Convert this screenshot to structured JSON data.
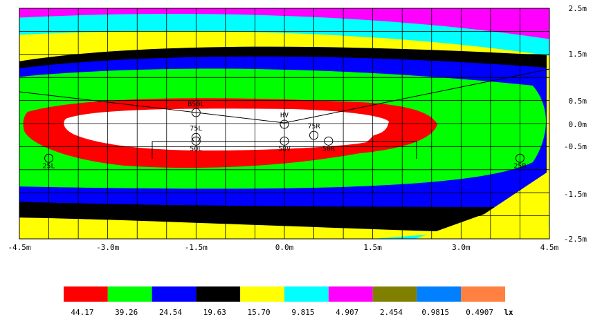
{
  "chart_data": {
    "type": "heatmap",
    "title": "",
    "xlabel": "",
    "ylabel": "",
    "xlim": [
      -4.5,
      4.5
    ],
    "ylim": [
      -2.5,
      2.5
    ],
    "x_ticks": [
      "-4.5m",
      "-3.0m",
      "-1.5m",
      "0.0m",
      "1.5m",
      "3.0m",
      "4.5m"
    ],
    "y_ticks": [
      {
        "value": 2.5,
        "label": "2.5m"
      },
      {
        "value": 1.5,
        "label": "1.5m"
      },
      {
        "value": 0.5,
        "label": "0.5m"
      },
      {
        "value": 0.0,
        "label": "0.0m"
      },
      {
        "value": -0.5,
        "label": "-0.5m"
      },
      {
        "value": -1.5,
        "label": "-1.5m"
      },
      {
        "value": -2.5,
        "label": "-2.5m"
      }
    ],
    "grid": true,
    "legend_placement": "bottom",
    "legend": [
      {
        "label": "44.17",
        "color": "#ff0000"
      },
      {
        "label": "39.26",
        "color": "#00ff00"
      },
      {
        "label": "24.54",
        "color": "#0000ff"
      },
      {
        "label": "19.63",
        "color": "#000000"
      },
      {
        "label": "15.70",
        "color": "#ffff00"
      },
      {
        "label": "9.815",
        "color": "#00ffff"
      },
      {
        "label": "4.907",
        "color": "#ff00ff"
      },
      {
        "label": "2.454",
        "color": "#808000"
      },
      {
        "label": "0.9815",
        "color": "#0080ff"
      },
      {
        "label": "0.4907",
        "color": "#ff8040"
      }
    ],
    "unit": "lx",
    "measurement_points": [
      {
        "name": "B50L",
        "x": -1.5,
        "y": 0.25
      },
      {
        "name": "HV",
        "x": 0.0,
        "y": 0.0
      },
      {
        "name": "75L",
        "x": -1.5,
        "y": -0.3
      },
      {
        "name": "75R",
        "x": 0.5,
        "y": -0.25
      },
      {
        "name": "50L",
        "x": -1.5,
        "y": -0.38
      },
      {
        "name": "50V",
        "x": 0.0,
        "y": -0.38
      },
      {
        "name": "50R",
        "x": 0.75,
        "y": -0.38
      },
      {
        "name": "25L",
        "x": -4.0,
        "y": -0.75
      },
      {
        "name": "25R",
        "x": 4.0,
        "y": -0.75
      }
    ]
  }
}
